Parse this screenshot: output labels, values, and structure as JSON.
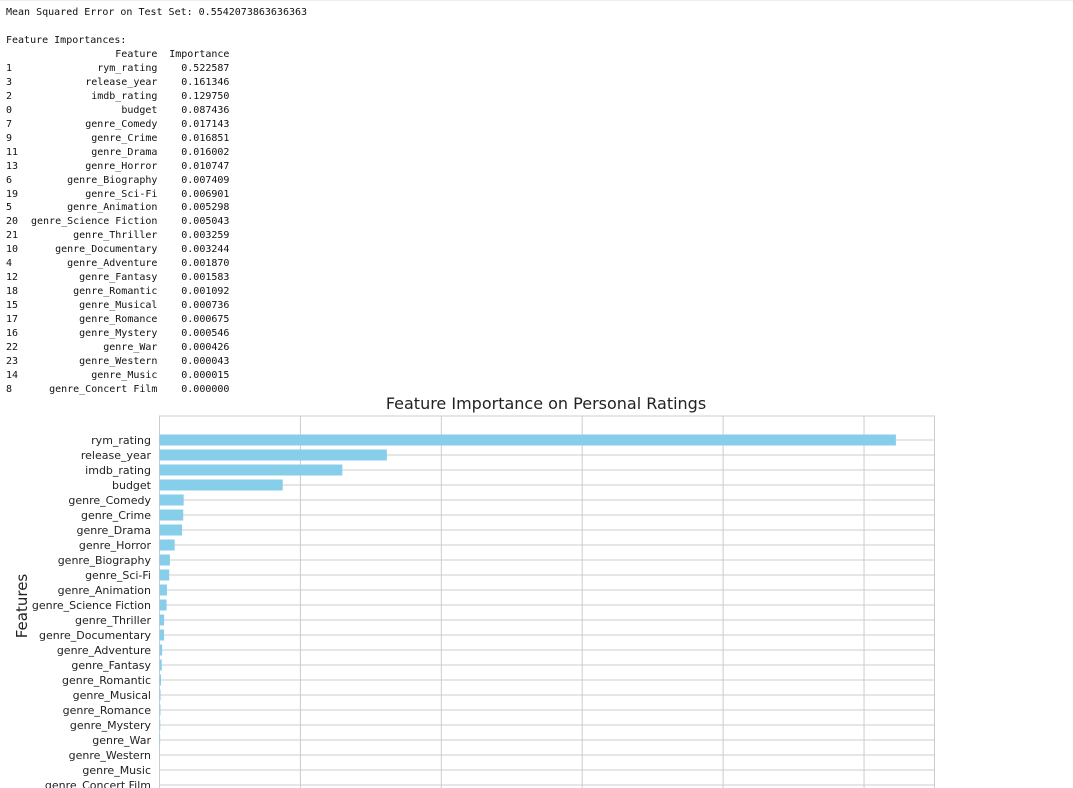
{
  "mse_text": "Mean Squared Error on Test Set: 0.5542073863636363",
  "importances_heading": "Feature Importances:",
  "table": {
    "columns": [
      "",
      "Feature",
      "Importance"
    ],
    "rows": [
      [
        "1",
        "rym_rating",
        "0.522587"
      ],
      [
        "3",
        "release_year",
        "0.161346"
      ],
      [
        "2",
        "imdb_rating",
        "0.129750"
      ],
      [
        "0",
        "budget",
        "0.087436"
      ],
      [
        "7",
        "genre_Comedy",
        "0.017143"
      ],
      [
        "9",
        "genre_Crime",
        "0.016851"
      ],
      [
        "11",
        "genre_Drama",
        "0.016002"
      ],
      [
        "13",
        "genre_Horror",
        "0.010747"
      ],
      [
        "6",
        "genre_Biography",
        "0.007409"
      ],
      [
        "19",
        "genre_Sci-Fi",
        "0.006901"
      ],
      [
        "5",
        "genre_Animation",
        "0.005298"
      ],
      [
        "20",
        "genre_Science Fiction",
        "0.005043"
      ],
      [
        "21",
        "genre_Thriller",
        "0.003259"
      ],
      [
        "10",
        "genre_Documentary",
        "0.003244"
      ],
      [
        "4",
        "genre_Adventure",
        "0.001870"
      ],
      [
        "12",
        "genre_Fantasy",
        "0.001583"
      ],
      [
        "18",
        "genre_Romantic",
        "0.001092"
      ],
      [
        "15",
        "genre_Musical",
        "0.000736"
      ],
      [
        "17",
        "genre_Romance",
        "0.000675"
      ],
      [
        "16",
        "genre_Mystery",
        "0.000546"
      ],
      [
        "22",
        "genre_War",
        "0.000426"
      ],
      [
        "23",
        "genre_Western",
        "0.000043"
      ],
      [
        "14",
        "genre_Music",
        "0.000015"
      ],
      [
        "8",
        "genre_Concert Film",
        "0.000000"
      ]
    ]
  },
  "chart_data": {
    "type": "bar",
    "orientation": "horizontal",
    "title": "Feature Importance on Personal Ratings",
    "xlabel": "",
    "ylabel": "Features",
    "categories": [
      "rym_rating",
      "release_year",
      "imdb_rating",
      "budget",
      "genre_Comedy",
      "genre_Crime",
      "genre_Drama",
      "genre_Horror",
      "genre_Biography",
      "genre_Sci-Fi",
      "genre_Animation",
      "genre_Science Fiction",
      "genre_Thriller",
      "genre_Documentary",
      "genre_Adventure",
      "genre_Fantasy",
      "genre_Romantic",
      "genre_Musical",
      "genre_Romance",
      "genre_Mystery",
      "genre_War",
      "genre_Western",
      "genre_Music",
      "genre_Concert Film"
    ],
    "values": [
      0.522587,
      0.161346,
      0.12975,
      0.087436,
      0.017143,
      0.016851,
      0.016002,
      0.010747,
      0.007409,
      0.006901,
      0.005298,
      0.005043,
      0.003259,
      0.003244,
      0.00187,
      0.001583,
      0.001092,
      0.000736,
      0.000675,
      0.000546,
      0.000426,
      4.3e-05,
      1.5e-05,
      0.0
    ],
    "xlim": [
      0,
      0.55
    ],
    "x_gridlines": [
      0,
      0.1,
      0.2,
      0.3,
      0.4,
      0.5
    ],
    "grid": true,
    "bar_color": "#87ceeb",
    "grid_color": "#cccccc"
  }
}
